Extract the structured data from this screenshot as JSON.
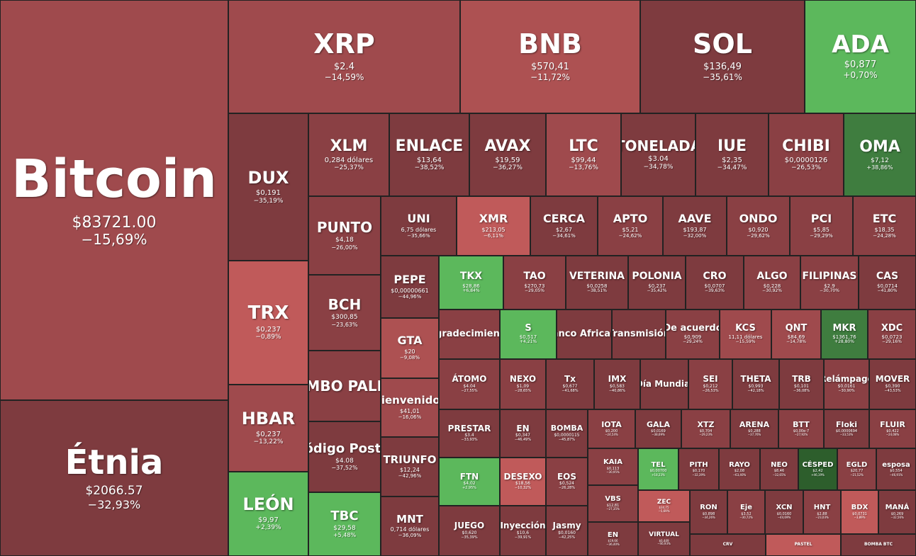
{
  "chart_data": {
    "type": "treemap",
    "colors": {
      "neg_strong": "#7e3b3f",
      "neg_mid": "#8a4044",
      "neg": "#9f4a4d",
      "neg_light": "#ad5152",
      "neg_bright": "#c05a5a",
      "pos_strong": "#2d5e2c",
      "pos_dark": "#3f7d3f",
      "pos": "#5cb85c"
    },
    "tiles": [
      {
        "name": "Bitcoin",
        "price": "$83721.00",
        "change": "−15,69%",
        "color": "neg"
      },
      {
        "name": "Étnia",
        "price": "$2066.57",
        "change": "−32,93%",
        "color": "neg_strong"
      },
      {
        "name": "XRP",
        "price": "$2.4",
        "change": "−14,59%",
        "color": "neg"
      },
      {
        "name": "BNB",
        "price": "$570,41",
        "change": "−11,72%",
        "color": "neg_light"
      },
      {
        "name": "SOL",
        "price": "$136,49",
        "change": "−35,61%",
        "color": "neg_strong"
      },
      {
        "name": "ADA",
        "price": "$0,877",
        "change": "+0,70%",
        "color": "pos"
      },
      {
        "name": "DUX",
        "price": "$0,191",
        "change": "−35,19%",
        "color": "neg_strong"
      },
      {
        "name": "TRX",
        "price": "$0,237",
        "change": "−0,89%",
        "color": "neg_bright"
      },
      {
        "name": "HBAR",
        "price": "$0,237",
        "change": "−13,22%",
        "color": "neg"
      },
      {
        "name": "LEÓN",
        "price": "$9,97",
        "change": "+2,39%",
        "color": "pos"
      },
      {
        "name": "XLM",
        "price": "0,284 dólares",
        "change": "−25,37%",
        "color": "neg_mid"
      },
      {
        "name": "ENLACE",
        "price": "$13,64",
        "change": "−38,52%",
        "color": "neg_strong"
      },
      {
        "name": "AVAX",
        "price": "$19,59",
        "change": "−36,27%",
        "color": "neg_strong"
      },
      {
        "name": "LTC",
        "price": "$99,44",
        "change": "−13,76%",
        "color": "neg"
      },
      {
        "name": "TONELADA",
        "price": "$3.04",
        "change": "−34,78%",
        "color": "neg_strong"
      },
      {
        "name": "IUE",
        "price": "$2,35",
        "change": "−34,47%",
        "color": "neg_strong"
      },
      {
        "name": "CHIBI",
        "price": "$0,0000126",
        "change": "−26,53%",
        "color": "neg_mid"
      },
      {
        "name": "OMA",
        "price": "$7,12",
        "change": "+38,86%",
        "color": "pos_dark"
      },
      {
        "name": "PUNTO",
        "price": "$4,18",
        "change": "−26,00%",
        "color": "neg_mid"
      },
      {
        "name": "BCH",
        "price": "$300,85",
        "change": "−23,63%",
        "color": "neg_mid"
      },
      {
        "name": "BOMBO PALETA",
        "price": "",
        "change": "",
        "color": "neg_mid"
      },
      {
        "name": "Código Postal",
        "price": "$4.08",
        "change": "−37,52%",
        "color": "neg_strong"
      },
      {
        "name": "TBC",
        "price": "$29,58",
        "change": "+5,48%",
        "color": "pos"
      },
      {
        "name": "UNI",
        "price": "6,75 dólares",
        "change": "−35,66%",
        "color": "neg_strong"
      },
      {
        "name": "XMR",
        "price": "$213,05",
        "change": "−6,11%",
        "color": "neg_bright"
      },
      {
        "name": "CERCA",
        "price": "$2,67",
        "change": "−34,61%",
        "color": "neg_strong"
      },
      {
        "name": "APTO",
        "price": "$5,21",
        "change": "−24,62%",
        "color": "neg_mid"
      },
      {
        "name": "AAVE",
        "price": "$193,87",
        "change": "−32,00%",
        "color": "neg_strong"
      },
      {
        "name": "ONDO",
        "price": "$0,920",
        "change": "−29,62%",
        "color": "neg_mid"
      },
      {
        "name": "PCI",
        "price": "$5,85",
        "change": "−29,29%",
        "color": "neg_mid"
      },
      {
        "name": "ETC",
        "price": "$18,35",
        "change": "−24,28%",
        "color": "neg_mid"
      },
      {
        "name": "PEPE",
        "price": "$0,00000661",
        "change": "−44,96%",
        "color": "neg_strong"
      },
      {
        "name": "GTA",
        "price": "$20",
        "change": "−9,08%",
        "color": "neg_light"
      },
      {
        "name": "Bienvenidos",
        "price": "$41,01",
        "change": "−16,06%",
        "color": "neg"
      },
      {
        "name": "TRIUNFO",
        "price": "$12,24",
        "change": "−42,96%",
        "color": "neg_strong"
      },
      {
        "name": "MNT",
        "price": "0,714 dólares",
        "change": "−36,09%",
        "color": "neg_strong"
      },
      {
        "name": "TKX",
        "price": "$28,86",
        "change": "+6,84%",
        "color": "pos"
      },
      {
        "name": "TAO",
        "price": "$270,73",
        "change": "−29,05%",
        "color": "neg_mid"
      },
      {
        "name": "VETERINA",
        "price": "$0,0258",
        "change": "−38,51%",
        "color": "neg_strong"
      },
      {
        "name": "POLONIA",
        "price": "$0,237",
        "change": "−35,42%",
        "color": "neg_strong"
      },
      {
        "name": "CRO",
        "price": "$0,0707",
        "change": "−39,63%",
        "color": "neg_strong"
      },
      {
        "name": "ALGO",
        "price": "$0,228",
        "change": "−30,92%",
        "color": "neg_mid"
      },
      {
        "name": "FILIPINAS",
        "price": "$2.9",
        "change": "−30,70%",
        "color": "neg_mid"
      },
      {
        "name": "CAS",
        "price": "$0,0714",
        "change": "−41,80%",
        "color": "neg_strong"
      },
      {
        "name": "Agradecimiento",
        "price": "",
        "change": "",
        "color": "neg_mid"
      },
      {
        "name": "S",
        "price": "$0,517",
        "change": "+4,21%",
        "color": "pos"
      },
      {
        "name": "Banco Africano",
        "price": "",
        "change": "",
        "color": "neg_strong"
      },
      {
        "name": "Transmisión",
        "price": "",
        "change": "",
        "color": "neg_strong"
      },
      {
        "name": "De acuerdo",
        "price": "$0,909",
        "change": "−29,24%",
        "color": "neg_mid"
      },
      {
        "name": "KCS",
        "price": "11,11 dólares",
        "change": "−15,59%",
        "color": "neg"
      },
      {
        "name": "QNT",
        "price": "$84,69",
        "change": "−14,78%",
        "color": "neg"
      },
      {
        "name": "MKR",
        "price": "$1361,76",
        "change": "+28,80%",
        "color": "pos_dark"
      },
      {
        "name": "XDC",
        "price": "$0,0723",
        "change": "−29,16%",
        "color": "neg_mid"
      },
      {
        "name": "ÁTOMO",
        "price": "$4.04",
        "change": "−27,55%",
        "color": "neg_mid"
      },
      {
        "name": "NEXO",
        "price": "$1,09",
        "change": "−28,65%",
        "color": "neg_mid"
      },
      {
        "name": "Tx",
        "price": "$0,677",
        "change": "−41,68%",
        "color": "neg_strong"
      },
      {
        "name": "IMX",
        "price": "$0,583",
        "change": "−40,86%",
        "color": "neg_strong"
      },
      {
        "name": "Día Mundial",
        "price": "",
        "change": "",
        "color": "neg_strong"
      },
      {
        "name": "SEI",
        "price": "$0,212",
        "change": "−26,53%",
        "color": "neg_mid"
      },
      {
        "name": "THETA",
        "price": "$0,993",
        "change": "−42,18%",
        "color": "neg_strong"
      },
      {
        "name": "TRB",
        "price": "$0,101",
        "change": "−36,08%",
        "color": "neg_strong"
      },
      {
        "name": "Relámpago",
        "price": "$0,0161",
        "change": "−30,90%",
        "color": "neg_mid"
      },
      {
        "name": "MOVER",
        "price": "$0,390",
        "change": "−43,53%",
        "color": "neg_strong"
      },
      {
        "name": "PRESTAR",
        "price": "$3.4",
        "change": "−33,93%",
        "color": "neg_strong"
      },
      {
        "name": "EN",
        "price": "$0,347",
        "change": "−46,49%",
        "color": "neg_strong"
      },
      {
        "name": "BOMBA",
        "price": "$0,0000115",
        "change": "−45,87%",
        "color": "neg_strong"
      },
      {
        "name": "IOTA",
        "price": "$0,200",
        "change": "−24,54%",
        "color": "neg_mid"
      },
      {
        "name": "GALA",
        "price": "$0,0169",
        "change": "−38,69%",
        "color": "neg_strong"
      },
      {
        "name": "XTZ",
        "price": "$0,704",
        "change": "−29,23%",
        "color": "neg_mid"
      },
      {
        "name": "ARENA",
        "price": "$0,288",
        "change": "−37,76%",
        "color": "neg_strong"
      },
      {
        "name": "BTT",
        "price": "$0,00e-7",
        "change": "−27,92%",
        "color": "neg_mid"
      },
      {
        "name": "Floki",
        "price": "$0,0000694",
        "change": "−33,53%",
        "color": "neg_strong"
      },
      {
        "name": "FLUIR",
        "price": "$0,422",
        "change": "−24,08%",
        "color": "neg_mid"
      },
      {
        "name": "FTN",
        "price": "$4,02",
        "change": "+2,95%",
        "color": "pos"
      },
      {
        "name": "DESEXO",
        "price": "$18,56",
        "change": "−10,32%",
        "color": "neg_bright"
      },
      {
        "name": "EOS",
        "price": "$0,524",
        "change": "−26,28%",
        "color": "neg_mid"
      },
      {
        "name": "KAIA",
        "price": "$0,113",
        "change": "−30,95%",
        "color": "neg_mid"
      },
      {
        "name": "TEL",
        "price": "$0,00700",
        "change": "+18,23%",
        "color": "pos"
      },
      {
        "name": "PITH",
        "price": "$0,170",
        "change": "−32,39%",
        "color": "neg_strong"
      },
      {
        "name": "RAYO",
        "price": "$2,08",
        "change": "−63,40%",
        "color": "neg_strong"
      },
      {
        "name": "NEO",
        "price": "$8,46",
        "change": "−32,65%",
        "color": "neg_strong"
      },
      {
        "name": "CÉSPED",
        "price": "$2,42",
        "change": "+46,19%",
        "color": "pos_strong"
      },
      {
        "name": "EGLD",
        "price": "$20,77",
        "change": "−21,52%",
        "color": "neg_mid"
      },
      {
        "name": "esposa",
        "price": "$0,554",
        "change": "−46,91%",
        "color": "neg_strong"
      },
      {
        "name": "JUEGO",
        "price": "$0,620",
        "change": "−35,39%",
        "color": "neg_strong"
      },
      {
        "name": "Inyección",
        "price": "$10,6",
        "change": "−39,91%",
        "color": "neg_strong"
      },
      {
        "name": "Jasmy",
        "price": "$0,0160",
        "change": "−42,25%",
        "color": "neg_strong"
      },
      {
        "name": "VBS",
        "price": "$12,81",
        "change": "−27,35%",
        "color": "neg_mid"
      },
      {
        "name": "ZEC",
        "price": "$34,75",
        "change": "−5,69%",
        "color": "neg_bright"
      },
      {
        "name": "RON",
        "price": "$0,898",
        "change": "−34,26%",
        "color": "neg_strong"
      },
      {
        "name": "Eje",
        "price": "$3,52",
        "change": "−30,72%",
        "color": "neg_mid"
      },
      {
        "name": "XCN",
        "price": "$0,0160",
        "change": "−44,69%",
        "color": "neg_strong"
      },
      {
        "name": "HNT",
        "price": "$2,88",
        "change": "−23,03%",
        "color": "neg_mid"
      },
      {
        "name": "BDX",
        "price": "$0,0731",
        "change": "−3,89%",
        "color": "neg_bright"
      },
      {
        "name": "MANÁ",
        "price": "$0,269",
        "change": "−32,56%",
        "color": "neg_strong"
      },
      {
        "name": "EN",
        "price": "$19,66",
        "change": "−36,40%",
        "color": "neg_strong"
      },
      {
        "name": "VIRTUAL",
        "price": "$0,449",
        "change": "−46,93%",
        "color": "neg_strong"
      },
      {
        "name": "CRV",
        "price": "",
        "change": "",
        "color": "neg_strong"
      },
      {
        "name": "PASTEL",
        "price": "",
        "change": "",
        "color": "neg_bright"
      },
      {
        "name": "BOMBA BTC",
        "price": "",
        "change": "",
        "color": "neg_strong"
      }
    ]
  }
}
